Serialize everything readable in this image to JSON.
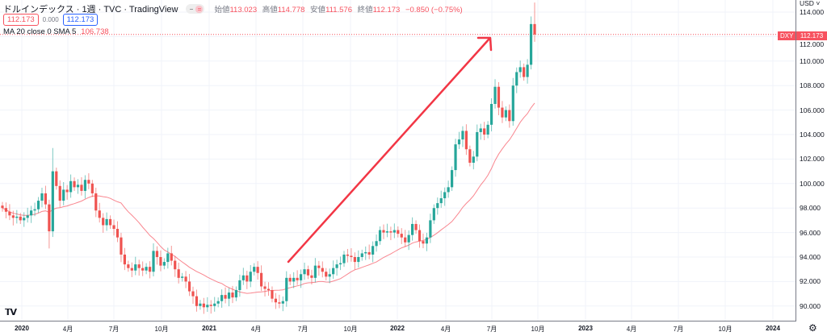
{
  "header": {
    "title": "ドルインデックス · 1週 · TVC · TradingView",
    "open_label": "始値",
    "open": "113.023",
    "high_label": "高値",
    "high": "114.778",
    "low_label": "安値",
    "low": "111.576",
    "close_label": "終値",
    "close": "112.173",
    "change": "−0.850 (−0.75%)"
  },
  "quote": {
    "bid": "112.173",
    "spread": "0.000",
    "ask": "112.173"
  },
  "indicator": {
    "label": "MA 20 close 0 SMA 5",
    "value": "106.738"
  },
  "price_axis": {
    "currency": "USD",
    "symbol_tag": "DXY",
    "last_price": "112.173"
  },
  "colors": {
    "up": "#26a69a",
    "down": "#ef5350",
    "ma": "#f7525f",
    "arrow": "#f23645"
  },
  "chart_data": {
    "type": "candlestick",
    "title": "ドルインデックス 1週",
    "interval": "weekly",
    "ylim": [
      89.3,
      115
    ],
    "yticks": [
      90,
      92,
      94,
      96,
      98,
      100,
      102,
      104,
      106,
      108,
      110,
      112,
      114
    ],
    "ytick_labels": [
      "90.000",
      "92.000",
      "94.000",
      "96.000",
      "98.000",
      "100.000",
      "102.000",
      "104.000",
      "106.000",
      "108.000",
      "110.000",
      "112.000",
      "114.000"
    ],
    "xtick_labels": [
      "2020",
      "4月",
      "7月",
      "10月",
      "2021",
      "4月",
      "7月",
      "10月",
      "2022",
      "4月",
      "7月",
      "10月",
      "2023",
      "4月",
      "7月",
      "10月",
      "2024"
    ],
    "first_open": 98.2,
    "closes": [
      98.0,
      97.7,
      97.4,
      97.2,
      97.3,
      97.0,
      97.2,
      97.4,
      97.8,
      97.9,
      98.6,
      99.2,
      98.3,
      96.1,
      101.0,
      99.8,
      98.6,
      99.5,
      99.3,
      100.2,
      99.7,
      99.9,
      99.4,
      100.3,
      100.0,
      99.2,
      97.8,
      97.2,
      96.6,
      97.1,
      96.6,
      96.3,
      95.6,
      94.2,
      93.4,
      93.1,
      92.9,
      93.4,
      93.1,
      92.9,
      93.2,
      92.8,
      94.5,
      94.0,
      93.3,
      93.6,
      94.3,
      93.7,
      93.0,
      92.3,
      92.4,
      92.0,
      91.2,
      90.8,
      90.0,
      90.2,
      89.9,
      90.1,
      90.0,
      90.2,
      90.4,
      90.9,
      90.6,
      91.1,
      90.7,
      91.3,
      92.1,
      92.5,
      92.0,
      92.8,
      93.2,
      92.7,
      91.6,
      91.4,
      91.3,
      90.6,
      90.3,
      90.2,
      90.4,
      92.3,
      92.0,
      92.3,
      92.1,
      92.6,
      93.0,
      92.5,
      92.3,
      93.3,
      93.1,
      92.8,
      92.4,
      92.6,
      93.1,
      93.4,
      93.5,
      94.2,
      94.1,
      94.0,
      93.6,
      94.0,
      94.3,
      94.4,
      94.2,
      94.9,
      95.3,
      96.2,
      96.0,
      96.1,
      96.0,
      96.2,
      95.9,
      95.6,
      95.2,
      95.8,
      96.7,
      96.2,
      95.3,
      95.1,
      95.6,
      97.0,
      98.0,
      98.4,
      98.8,
      99.3,
      99.7,
      101.1,
      103.2,
      103.6,
      104.3,
      102.8,
      101.7,
      102.2,
      104.2,
      104.5,
      104.0,
      104.8,
      106.5,
      107.9,
      106.2,
      105.4,
      106.0,
      105.1,
      108.0,
      109.1,
      109.5,
      108.7,
      109.7,
      113.023,
      112.173
    ],
    "last_candle": {
      "open": 113.023,
      "high": 114.778,
      "low": 111.576,
      "close": 112.173
    },
    "ma": {
      "type": "SMA",
      "length": 20,
      "last": 106.738
    },
    "annotations": [
      "upward trend arrow"
    ]
  }
}
